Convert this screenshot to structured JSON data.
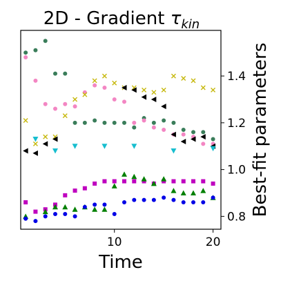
{
  "chart_data": {
    "type": "scatter",
    "title_main": "2D - Gradient ",
    "title_symbol": "τ",
    "title_sub": "kin",
    "xlabel": "Time",
    "ylabel": "Best-fit parameters",
    "xlim": [
      0.5,
      20.8
    ],
    "ylim": [
      0.745,
      1.595
    ],
    "x_ticks": [
      10,
      20
    ],
    "y_ticks": [
      0.8,
      1.0,
      1.2,
      1.4
    ],
    "y_axis_side": "right",
    "grid": false,
    "series": [
      {
        "color": "#3a7d5a",
        "marker": "circle",
        "points": [
          [
            1,
            1.5
          ],
          [
            2,
            1.51
          ],
          [
            3,
            1.55
          ],
          [
            4,
            1.41
          ],
          [
            5,
            1.41
          ],
          [
            6,
            1.2
          ],
          [
            7,
            1.2
          ],
          [
            8,
            1.21
          ],
          [
            9,
            1.2
          ],
          [
            10,
            1.2
          ],
          [
            11,
            1.2
          ],
          [
            12,
            1.18
          ],
          [
            13,
            1.22
          ],
          [
            14,
            1.2
          ],
          [
            15,
            1.21
          ],
          [
            16,
            1.2
          ],
          [
            17,
            1.17
          ],
          [
            18,
            1.16
          ],
          [
            19,
            1.16
          ],
          [
            20,
            1.13
          ]
        ]
      },
      {
        "color": "#f386c3",
        "marker": "circle",
        "points": [
          [
            1,
            1.48
          ],
          [
            2,
            1.38
          ],
          [
            3,
            1.28
          ],
          [
            4,
            1.26
          ],
          [
            5,
            1.28
          ],
          [
            6,
            1.27
          ],
          [
            7,
            1.33
          ],
          [
            8,
            1.36
          ],
          [
            9,
            1.35
          ],
          [
            10,
            1.3
          ],
          [
            11,
            1.29
          ],
          [
            12,
            1.2
          ],
          [
            13,
            1.21
          ],
          [
            14,
            1.18
          ],
          [
            15,
            1.17
          ],
          [
            16,
            1.15
          ],
          [
            17,
            1.15
          ],
          [
            18,
            1.14
          ],
          [
            19,
            1.11
          ],
          [
            20,
            1.11
          ]
        ]
      },
      {
        "color": "#c6b80c",
        "marker": "x",
        "points": [
          [
            1,
            1.21
          ],
          [
            2,
            1.11
          ],
          [
            3,
            1.14
          ],
          [
            4,
            1.14
          ],
          [
            5,
            1.23
          ],
          [
            6,
            1.3
          ],
          [
            7,
            1.32
          ],
          [
            8,
            1.38
          ],
          [
            9,
            1.4
          ],
          [
            10,
            1.37
          ],
          [
            11,
            1.35
          ],
          [
            12,
            1.35
          ],
          [
            13,
            1.34
          ],
          [
            14,
            1.33
          ],
          [
            15,
            1.34
          ],
          [
            16,
            1.4
          ],
          [
            17,
            1.39
          ],
          [
            18,
            1.38
          ],
          [
            19,
            1.35
          ],
          [
            20,
            1.34
          ]
        ]
      },
      {
        "color": "#000000",
        "marker": "triangle-left",
        "points": [
          [
            1,
            1.08
          ],
          [
            2,
            1.07
          ],
          [
            3,
            1.11
          ],
          [
            4,
            1.13
          ],
          [
            11,
            1.35
          ],
          [
            12,
            1.34
          ],
          [
            13,
            1.31
          ],
          [
            14,
            1.3
          ],
          [
            15,
            1.27
          ],
          [
            16,
            1.15
          ],
          [
            17,
            1.12
          ],
          [
            18,
            1.13
          ],
          [
            19,
            1.14
          ],
          [
            20,
            1.1
          ]
        ]
      },
      {
        "color": "#17becf",
        "marker": "triangle-down",
        "points": [
          [
            2,
            1.13
          ],
          [
            4,
            1.08
          ],
          [
            6,
            1.1
          ],
          [
            9,
            1.1
          ],
          [
            12,
            1.1
          ],
          [
            16,
            1.08
          ],
          [
            20,
            1.09
          ]
        ]
      },
      {
        "color": "#bf00bf",
        "marker": "square",
        "points": [
          [
            1,
            0.86
          ],
          [
            2,
            0.82
          ],
          [
            3,
            0.83
          ],
          [
            4,
            0.85
          ],
          [
            5,
            0.89
          ],
          [
            6,
            0.91
          ],
          [
            7,
            0.92
          ],
          [
            8,
            0.94
          ],
          [
            9,
            0.95
          ],
          [
            10,
            0.95
          ],
          [
            11,
            0.95
          ],
          [
            12,
            0.95
          ],
          [
            13,
            0.95
          ],
          [
            14,
            0.94
          ],
          [
            15,
            0.95
          ],
          [
            16,
            0.95
          ],
          [
            17,
            0.95
          ],
          [
            18,
            0.95
          ],
          [
            19,
            0.95
          ],
          [
            20,
            0.94
          ]
        ]
      },
      {
        "color": "#008000",
        "marker": "triangle-up",
        "points": [
          [
            1,
            0.8
          ],
          [
            3,
            0.82
          ],
          [
            4,
            0.84
          ],
          [
            5,
            0.84
          ],
          [
            6,
            0.83
          ],
          [
            7,
            0.84
          ],
          [
            8,
            0.83
          ],
          [
            9,
            0.83
          ],
          [
            10,
            0.93
          ],
          [
            11,
            0.98
          ],
          [
            12,
            0.97
          ],
          [
            13,
            0.96
          ],
          [
            14,
            0.94
          ],
          [
            15,
            0.96
          ],
          [
            16,
            0.91
          ],
          [
            17,
            0.9
          ],
          [
            18,
            0.9
          ],
          [
            19,
            0.91
          ],
          [
            20,
            0.88
          ]
        ]
      },
      {
        "color": "#0000e6",
        "marker": "circle",
        "points": [
          [
            1,
            0.79
          ],
          [
            2,
            0.78
          ],
          [
            3,
            0.8
          ],
          [
            4,
            0.81
          ],
          [
            5,
            0.81
          ],
          [
            6,
            0.8
          ],
          [
            7,
            0.84
          ],
          [
            8,
            0.85
          ],
          [
            9,
            0.85
          ],
          [
            10,
            0.81
          ],
          [
            11,
            0.86
          ],
          [
            12,
            0.87
          ],
          [
            13,
            0.87
          ],
          [
            14,
            0.87
          ],
          [
            15,
            0.88
          ],
          [
            16,
            0.87
          ],
          [
            17,
            0.86
          ],
          [
            18,
            0.86
          ],
          [
            19,
            0.86
          ],
          [
            20,
            0.88
          ]
        ]
      }
    ]
  }
}
